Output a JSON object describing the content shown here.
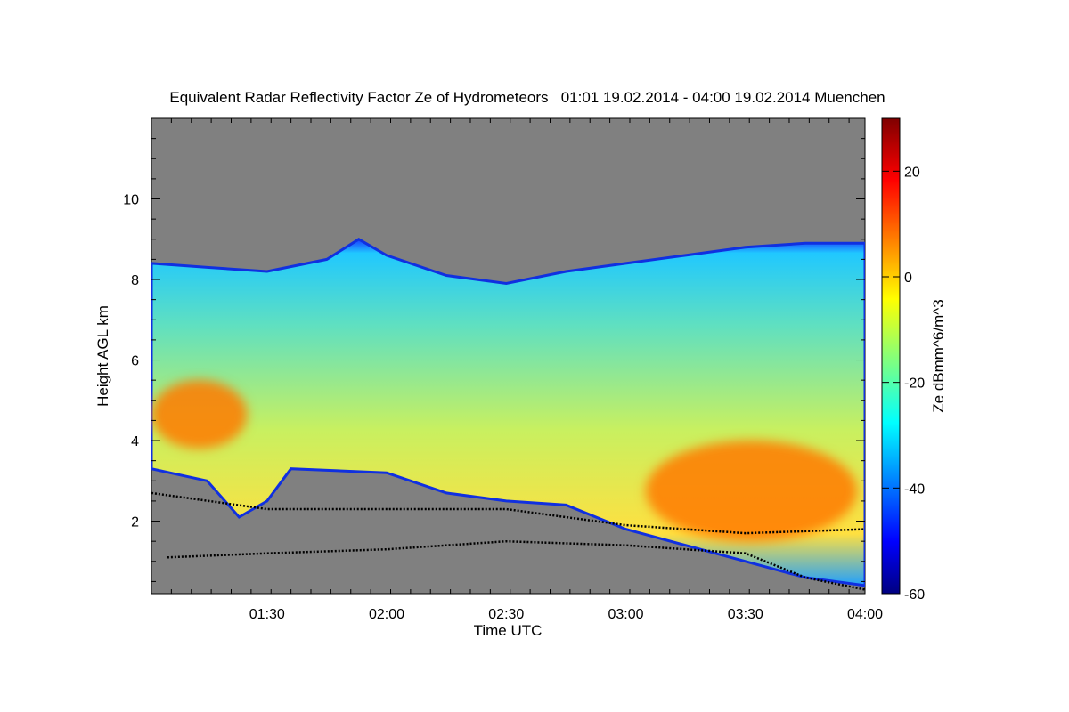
{
  "chart_data": {
    "type": "heatmap",
    "title": "Equivalent Radar Reflectivity Factor Ze of Hydrometeors   01:01 19.02.2014 - 04:00 19.02.2014 Muenchen",
    "xlabel": "Time UTC",
    "ylabel": "Height AGL km",
    "colorbar_label": "Ze dBmm^6/m^3",
    "x_range": [
      "01:01",
      "04:00"
    ],
    "y_range_km": [
      0.2,
      12.0
    ],
    "x_ticks": [
      "01:30",
      "02:00",
      "02:30",
      "03:00",
      "03:30",
      "04:00"
    ],
    "y_ticks": [
      2,
      4,
      6,
      8,
      10
    ],
    "colorbar_range": [
      -60,
      30
    ],
    "colorbar_ticks": [
      20,
      0,
      -20,
      -40,
      -60
    ],
    "colormap": "jet",
    "background_color": "#808080",
    "cloud_top_km": [
      {
        "t": "01:01",
        "h": 8.4
      },
      {
        "t": "01:15",
        "h": 8.3
      },
      {
        "t": "01:30",
        "h": 8.2
      },
      {
        "t": "01:45",
        "h": 8.5
      },
      {
        "t": "01:53",
        "h": 9.0
      },
      {
        "t": "02:00",
        "h": 8.6
      },
      {
        "t": "02:15",
        "h": 8.1
      },
      {
        "t": "02:30",
        "h": 7.9
      },
      {
        "t": "02:45",
        "h": 8.2
      },
      {
        "t": "03:00",
        "h": 8.4
      },
      {
        "t": "03:15",
        "h": 8.6
      },
      {
        "t": "03:30",
        "h": 8.8
      },
      {
        "t": "03:45",
        "h": 8.9
      },
      {
        "t": "04:00",
        "h": 8.9
      }
    ],
    "cloud_base_km": [
      {
        "t": "01:01",
        "h": 3.3
      },
      {
        "t": "01:15",
        "h": 3.0
      },
      {
        "t": "01:23",
        "h": 2.1
      },
      {
        "t": "01:30",
        "h": 2.5
      },
      {
        "t": "01:36",
        "h": 3.3
      },
      {
        "t": "02:00",
        "h": 3.2
      },
      {
        "t": "02:15",
        "h": 2.7
      },
      {
        "t": "02:30",
        "h": 2.5
      },
      {
        "t": "02:45",
        "h": 2.4
      },
      {
        "t": "03:00",
        "h": 1.8
      },
      {
        "t": "03:15",
        "h": 1.4
      },
      {
        "t": "03:30",
        "h": 1.0
      },
      {
        "t": "03:45",
        "h": 0.6
      },
      {
        "t": "04:00",
        "h": 0.4
      }
    ],
    "dotted_line_upper_km": [
      {
        "t": "01:01",
        "h": 2.7
      },
      {
        "t": "01:30",
        "h": 2.3
      },
      {
        "t": "02:00",
        "h": 2.3
      },
      {
        "t": "02:30",
        "h": 2.3
      },
      {
        "t": "03:00",
        "h": 1.9
      },
      {
        "t": "03:30",
        "h": 1.7
      },
      {
        "t": "04:00",
        "h": 1.8
      }
    ],
    "dotted_line_lower_km": [
      {
        "t": "01:05",
        "h": 1.1
      },
      {
        "t": "01:30",
        "h": 1.2
      },
      {
        "t": "02:00",
        "h": 1.3
      },
      {
        "t": "02:30",
        "h": 1.5
      },
      {
        "t": "03:00",
        "h": 1.4
      },
      {
        "t": "03:30",
        "h": 1.2
      },
      {
        "t": "03:45",
        "h": 0.6
      },
      {
        "t": "04:00",
        "h": 0.3
      }
    ],
    "high_reflectivity_regions": [
      {
        "t_start": "01:01",
        "t_end": "01:25",
        "h_low": 3.8,
        "h_high": 5.5,
        "ze": 5
      },
      {
        "t_start": "03:05",
        "t_end": "03:58",
        "h_low": 1.5,
        "h_high": 4.0,
        "ze": 12
      }
    ]
  }
}
